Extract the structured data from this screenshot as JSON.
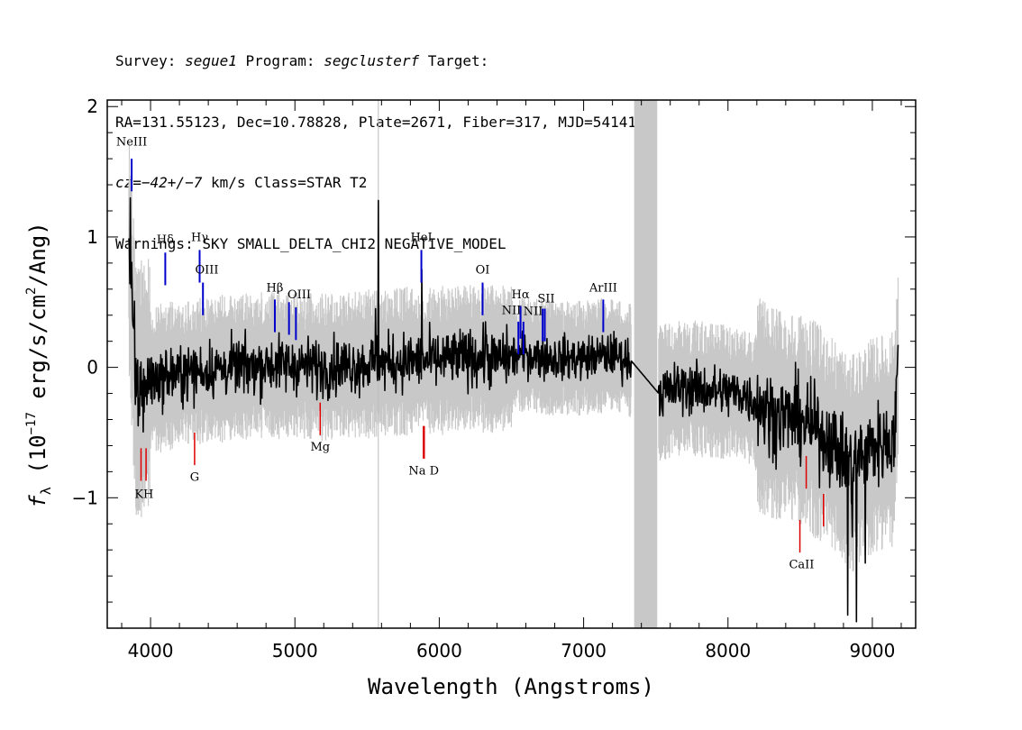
{
  "header": {
    "line1": {
      "survey_label": "Survey: ",
      "survey": "segue1",
      "program_label": " Program: ",
      "program": "segclusterf",
      "target_label": " Target:"
    },
    "line2": "RA=131.55123, Dec=10.78828, Plate=2671, Fiber=317, MJD=54141",
    "line3": {
      "cz_label": "cz",
      "cz_value": "=−42+/−7",
      "cz_rest": " km/s Class=STAR T2"
    },
    "line4": "Warnings: SKY SMALL_DELTA_CHI2 NEGATIVE_MODEL"
  },
  "colors": {
    "flux": "#000000",
    "error": "#c8c8c8",
    "emission_line": "#0000cc",
    "absorption_line": "#dd0000",
    "masked_band": "#c8c8c8",
    "reference_line": "#bbbbbb"
  },
  "chart_data": {
    "type": "line",
    "xlabel": "Wavelength (Angstroms)",
    "ylabel": {
      "symbol": "f",
      "subscript": "λ",
      "open": " (10",
      "exp": "−17",
      "mid": " erg/s/cm",
      "sq": "2",
      "close": "/Ang)"
    },
    "xlim": [
      3700,
      9300
    ],
    "ylim": [
      -2.0,
      2.05
    ],
    "x_ticks": [
      4000,
      5000,
      6000,
      7000,
      8000,
      9000
    ],
    "x_tick_labels": [
      "4000",
      "5000",
      "6000",
      "7000",
      "8000",
      "9000"
    ],
    "y_ticks": [
      -1,
      0,
      1,
      2
    ],
    "y_tick_labels": [
      "−1",
      "0",
      "1",
      "2"
    ],
    "x_minor_step": 200,
    "y_minor_step": 0.2,
    "reference_line_x": 5578,
    "masked_region": [
      7350,
      7510
    ],
    "gap_region": [
      7330,
      7520
    ],
    "flux_anchors": [
      [
        3850,
        0.9
      ],
      [
        3900,
        -0.2
      ],
      [
        3950,
        -0.15
      ],
      [
        4000,
        -0.1
      ],
      [
        4200,
        -0.05
      ],
      [
        4400,
        -0.02
      ],
      [
        4600,
        0.0
      ],
      [
        4800,
        0.02
      ],
      [
        5000,
        0.02
      ],
      [
        5200,
        0.0
      ],
      [
        5400,
        0.02
      ],
      [
        5600,
        0.03
      ],
      [
        5800,
        0.05
      ],
      [
        6000,
        0.05
      ],
      [
        6200,
        0.08
      ],
      [
        6400,
        0.06
      ],
      [
        6600,
        0.1
      ],
      [
        6800,
        0.07
      ],
      [
        7000,
        0.07
      ],
      [
        7200,
        0.1
      ],
      [
        7330,
        0.05
      ],
      [
        7520,
        -0.2
      ],
      [
        7700,
        -0.15
      ],
      [
        7900,
        -0.18
      ],
      [
        8100,
        -0.2
      ],
      [
        8300,
        -0.35
      ],
      [
        8500,
        -0.4
      ],
      [
        8700,
        -0.55
      ],
      [
        8850,
        -0.75
      ],
      [
        9000,
        -0.6
      ],
      [
        9150,
        -0.55
      ],
      [
        9180,
        0.05
      ]
    ],
    "flux_spikes": [
      {
        "x": 3860,
        "y": 1.3
      },
      {
        "x": 5578,
        "y": 1.28
      },
      {
        "x": 5560,
        "y": 0.45
      },
      {
        "x": 5880,
        "y": 0.75
      },
      {
        "x": 6320,
        "y": 0.35
      },
      {
        "x": 8830,
        "y": -1.9
      },
      {
        "x": 8890,
        "y": -1.95
      },
      {
        "x": 8860,
        "y": -1.3
      },
      {
        "x": 8950,
        "y": -1.5
      }
    ],
    "emission_lines": [
      {
        "label": "NeIII",
        "x": 3869,
        "y_top": 1.6,
        "y_bottom": 1.35
      },
      {
        "label": "Hδ",
        "x": 4102,
        "y_top": 0.88,
        "y_bottom": 0.63
      },
      {
        "label": "Hγ",
        "x": 4340,
        "y_top": 0.9,
        "y_bottom": 0.65
      },
      {
        "label": "OIII",
        "x": 4363,
        "y_top": 0.65,
        "y_bottom": 0.4
      },
      {
        "label": "Hβ",
        "x": 4861,
        "y_top": 0.52,
        "y_bottom": 0.27
      },
      {
        "label": "OIII",
        "x": 4959,
        "y_top": 0.5,
        "y_bottom": 0.25
      },
      {
        "label": "OIII",
        "x": 5007,
        "y_top": 0.46,
        "y_bottom": 0.21
      },
      {
        "label": "HeI",
        "x": 5876,
        "y_top": 0.9,
        "y_bottom": 0.65
      },
      {
        "label": "OI",
        "x": 6300,
        "y_top": 0.65,
        "y_bottom": 0.4
      },
      {
        "label": "NII",
        "x": 6548,
        "y_top": 0.35,
        "y_bottom": 0.1
      },
      {
        "label": "Hα",
        "x": 6563,
        "y_top": 0.47,
        "y_bottom": 0.22
      },
      {
        "label": "NII",
        "x": 6583,
        "y_top": 0.35,
        "y_bottom": 0.1
      },
      {
        "label": "SII",
        "x": 6716,
        "y_top": 0.45,
        "y_bottom": 0.2
      },
      {
        "label": "SII",
        "x": 6731,
        "y_top": 0.45,
        "y_bottom": 0.2
      },
      {
        "label": "ArIII",
        "x": 7136,
        "y_top": 0.52,
        "y_bottom": 0.27
      }
    ],
    "emission_labels": [
      {
        "text": "NeIII",
        "x": 3869,
        "y": 1.7
      },
      {
        "text": "Hδ",
        "x": 4102,
        "y": 0.95
      },
      {
        "text": "Hγ",
        "x": 4340,
        "y": 0.97
      },
      {
        "text": "OIII",
        "x": 4390,
        "y": 0.72
      },
      {
        "text": "Hβ",
        "x": 4861,
        "y": 0.58
      },
      {
        "text": "OIII",
        "x": 5030,
        "y": 0.53
      },
      {
        "text": "HeI",
        "x": 5876,
        "y": 0.97
      },
      {
        "text": "OI",
        "x": 6300,
        "y": 0.72
      },
      {
        "text": "NII",
        "x": 6500,
        "y": 0.41
      },
      {
        "text": "Hα",
        "x": 6563,
        "y": 0.53
      },
      {
        "text": "NII",
        "x": 6650,
        "y": 0.4
      },
      {
        "text": "SII",
        "x": 6740,
        "y": 0.5
      },
      {
        "text": "ArIII",
        "x": 7136,
        "y": 0.58
      }
    ],
    "absorption_lines": [
      {
        "label": "K",
        "x": 3934,
        "y_top": -0.62,
        "y_bottom": -0.87
      },
      {
        "label": "H",
        "x": 3969,
        "y_top": -0.62,
        "y_bottom": -0.87
      },
      {
        "label": "G",
        "x": 4305,
        "y_top": -0.5,
        "y_bottom": -0.75
      },
      {
        "label": "Mg",
        "x": 5175,
        "y_top": -0.27,
        "y_bottom": -0.52
      },
      {
        "label": "Na",
        "x": 5890,
        "y_top": -0.45,
        "y_bottom": -0.7
      },
      {
        "label": "D",
        "x": 5896,
        "y_top": -0.45,
        "y_bottom": -0.7
      },
      {
        "label": "CaII",
        "x": 8498,
        "y_top": -1.17,
        "y_bottom": -1.42
      },
      {
        "label": "CaII",
        "x": 8542,
        "y_top": -0.68,
        "y_bottom": -0.93
      },
      {
        "label": "CaII",
        "x": 8662,
        "y_top": -0.97,
        "y_bottom": -1.22
      }
    ],
    "absorption_labels": [
      {
        "text": "KH",
        "x": 3955,
        "y": -1.0
      },
      {
        "text": "G",
        "x": 4305,
        "y": -0.87
      },
      {
        "text": "Mg",
        "x": 5175,
        "y": -0.64
      },
      {
        "text": "Na  D",
        "x": 5893,
        "y": -0.82
      },
      {
        "text": "CaII",
        "x": 8510,
        "y": -1.54
      }
    ]
  }
}
